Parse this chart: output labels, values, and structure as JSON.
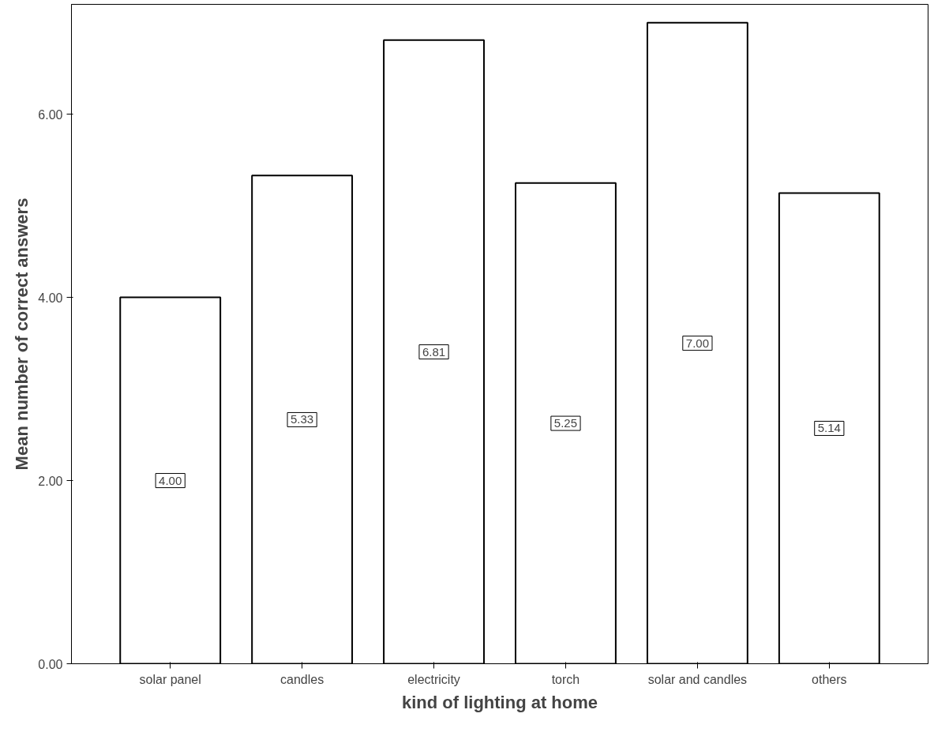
{
  "chart_data": {
    "type": "bar",
    "xlabel": "kind of lighting at home",
    "ylabel": "Mean number of correct answers",
    "categories": [
      "solar panel",
      "candles",
      "electricity",
      "torch",
      "solar and candles",
      "others"
    ],
    "values": [
      4.0,
      5.33,
      6.81,
      5.25,
      7.0,
      5.14
    ],
    "value_labels": [
      "4.00",
      "5.33",
      "6.81",
      "5.25",
      "7.00",
      "5.14"
    ],
    "color": "#ffffff",
    "ylim": [
      0,
      7.2
    ],
    "yticks": [
      {
        "value": 0,
        "label": "0.00"
      },
      {
        "value": 2,
        "label": "2.00"
      },
      {
        "value": 4,
        "label": "4.00"
      },
      {
        "value": 6,
        "label": "6.00"
      }
    ],
    "grid": false
  }
}
